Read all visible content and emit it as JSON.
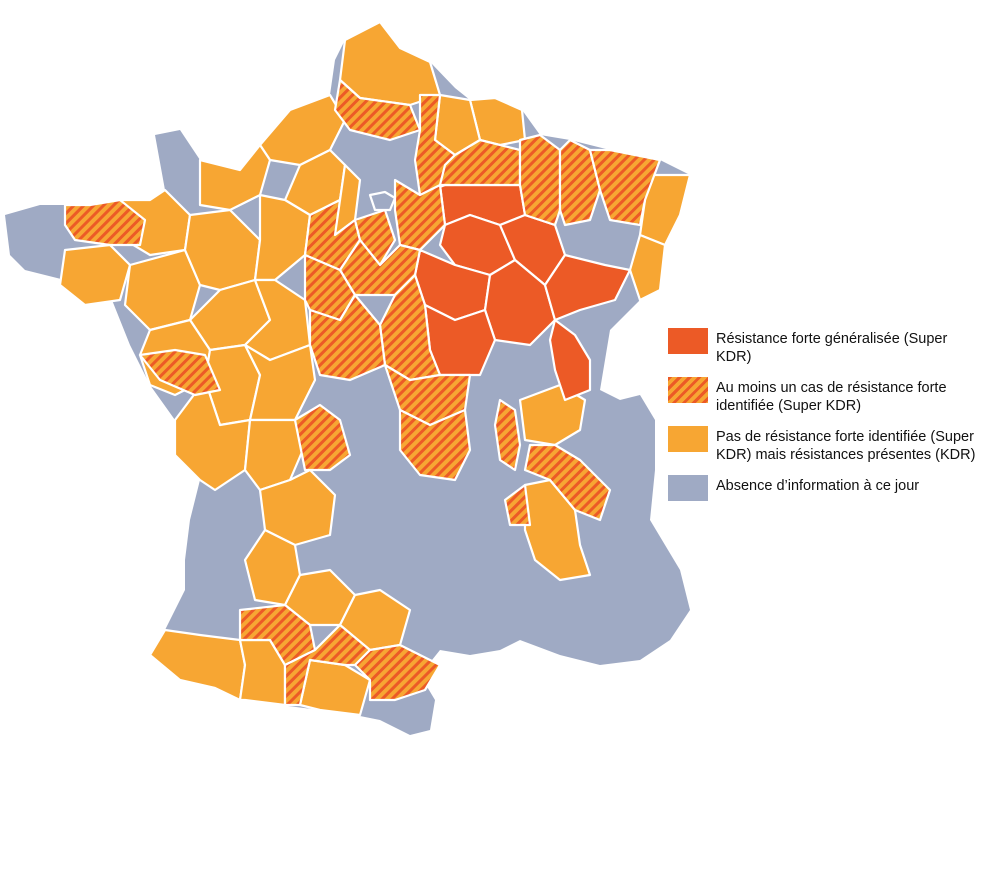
{
  "colors": {
    "strong": "#ec5a26",
    "present": "#f7a633",
    "none": "#9faac4",
    "border": "#ffffff"
  },
  "legend": [
    {
      "key": "strong",
      "label": "Résistance forte généralisée (Super KDR)"
    },
    {
      "key": "hatched",
      "label": "Au moins un cas de résistance forte identifiée (Super KDR)"
    },
    {
      "key": "present",
      "label": "Pas de résistance forte identifiée (Super KDR) mais résistances présentes (KDR)"
    },
    {
      "key": "none",
      "label": "Absence d’information à ce jour"
    }
  ]
}
